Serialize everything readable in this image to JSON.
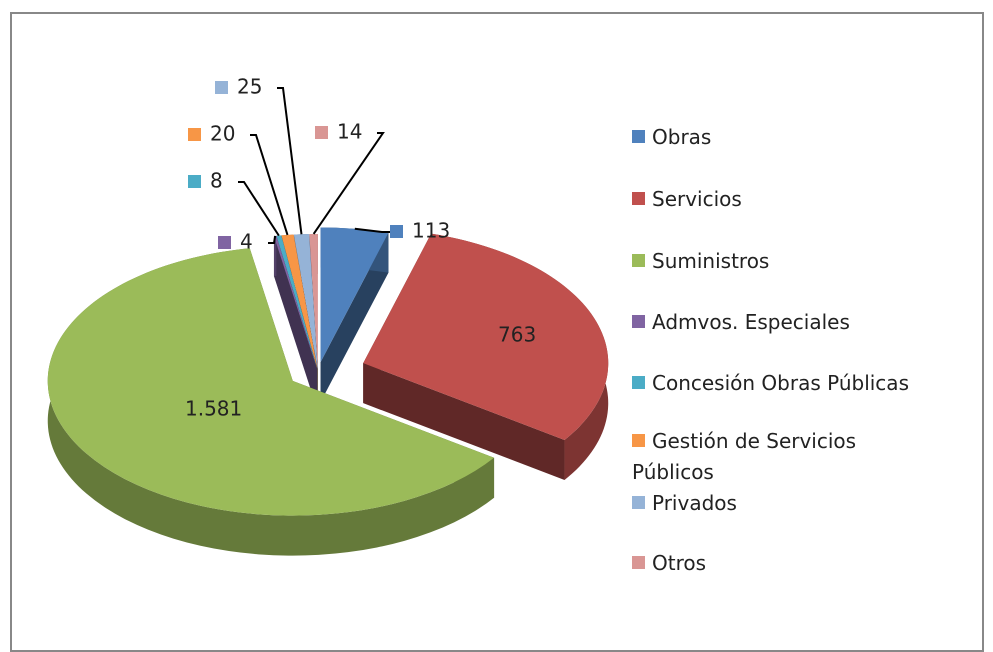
{
  "chart_data": {
    "type": "pie3d",
    "categories": [
      "Obras",
      "Servicios",
      "Suministros",
      "Admvos. Especiales",
      "Concesión Obras Públicas",
      "Gestión de Servicios Públicos",
      "Privados",
      "Otros"
    ],
    "values": [
      113,
      763,
      1581,
      4,
      8,
      20,
      25,
      14
    ],
    "value_labels": [
      "113",
      "763",
      "1.581",
      "4",
      "8",
      "20",
      "25",
      "14"
    ],
    "colors": [
      "#4f81bd",
      "#c0504d",
      "#9bbb59",
      "#8064a2",
      "#4bacc6",
      "#f79646",
      "#95b3d7",
      "#d99694"
    ],
    "legend": "right"
  }
}
